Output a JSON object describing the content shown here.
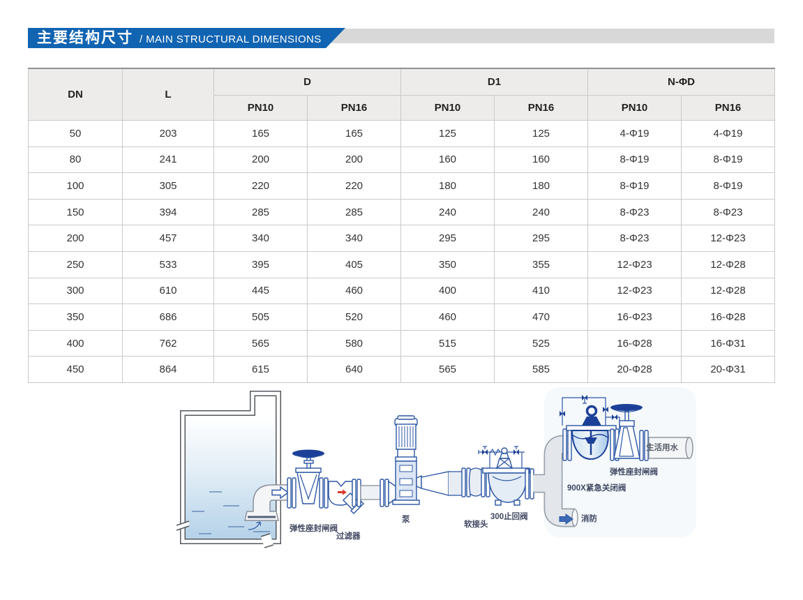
{
  "banner": {
    "title_zh": "主要结构尺寸",
    "title_en": "/ MAIN STRUCTURAL DIMENSIONS"
  },
  "table": {
    "headers": {
      "dn": "DN",
      "l": "L",
      "d": "D",
      "d1": "D1",
      "nphid": "N-ΦD",
      "pn10": "PN10",
      "pn16": "PN16"
    },
    "rows": [
      [
        "50",
        "203",
        "165",
        "165",
        "125",
        "125",
        "4-Φ19",
        "4-Φ19"
      ],
      [
        "80",
        "241",
        "200",
        "200",
        "160",
        "160",
        "8-Φ19",
        "8-Φ19"
      ],
      [
        "100",
        "305",
        "220",
        "220",
        "180",
        "180",
        "8-Φ19",
        "8-Φ19"
      ],
      [
        "150",
        "394",
        "285",
        "285",
        "240",
        "240",
        "8-Φ23",
        "8-Φ23"
      ],
      [
        "200",
        "457",
        "340",
        "340",
        "295",
        "295",
        "8-Φ23",
        "12-Φ23"
      ],
      [
        "250",
        "533",
        "395",
        "405",
        "350",
        "355",
        "12-Φ23",
        "12-Φ28"
      ],
      [
        "300",
        "610",
        "445",
        "460",
        "400",
        "410",
        "12-Φ23",
        "12-Φ28"
      ],
      [
        "350",
        "686",
        "505",
        "520",
        "460",
        "470",
        "16-Φ23",
        "16-Φ28"
      ],
      [
        "400",
        "762",
        "565",
        "580",
        "515",
        "525",
        "16-Φ28",
        "16-Φ31"
      ],
      [
        "450",
        "864",
        "615",
        "640",
        "565",
        "585",
        "20-Φ28",
        "20-Φ31"
      ]
    ]
  },
  "diagram": {
    "labels": {
      "inlet_gate_valve": "弹性座封闸阀",
      "strainer": "过滤器",
      "pump": "泵",
      "flexible_joint": "软接头",
      "check_valve": "300止回阀",
      "emergency_valve": "900X紧急关闭阀",
      "outlet_gate_valve": "弹性座封闸阀",
      "domestic_water": "生活用水",
      "fire": "消防"
    }
  },
  "colors": {
    "banner_blue": "#1164b2",
    "banner_gray": "#d8d8d8",
    "table_header_bg": "#edecea",
    "diagram_line_blue": "#2b55a4",
    "diagram_dark_navy": "#1c3f97",
    "red_arrow": "#d93a2b"
  }
}
